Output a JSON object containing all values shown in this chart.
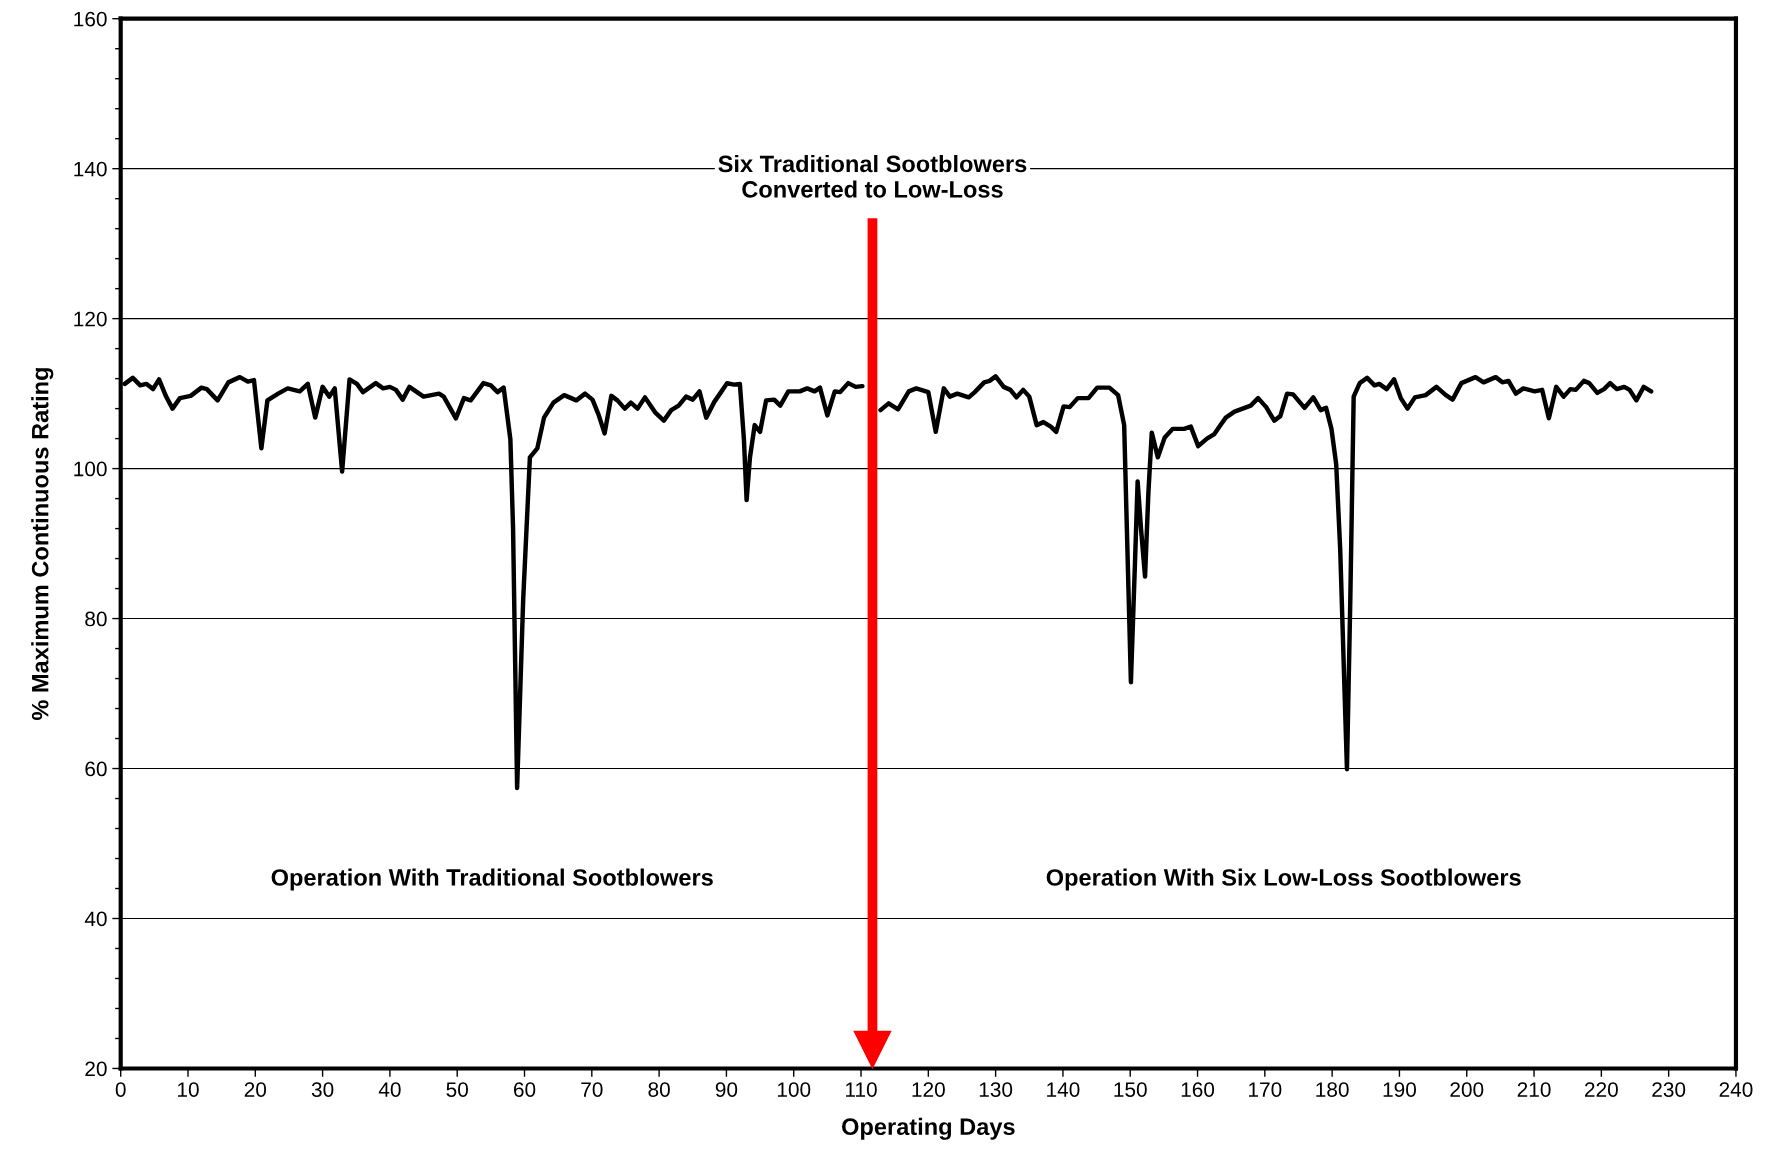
{
  "chart_data": {
    "type": "line",
    "xlabel": "Operating Days",
    "ylabel": "% Maximum Continuous Rating",
    "xlim": [
      0,
      240
    ],
    "xticks": [
      0,
      10,
      20,
      30,
      40,
      50,
      60,
      70,
      80,
      90,
      100,
      110,
      120,
      130,
      140,
      150,
      160,
      170,
      180,
      190,
      200,
      210,
      220,
      230,
      240
    ],
    "ylim": [
      20,
      160
    ],
    "yticks": [
      20,
      40,
      60,
      80,
      100,
      120,
      140,
      160
    ],
    "grid": "y",
    "marker": "none",
    "line_style": "solid",
    "series": [
      {
        "color": "#000000",
        "x": [
          0.6,
          1.8,
          2.9,
          3.8,
          4.8,
          5.7,
          6.7,
          7.7,
          8.8,
          10.4,
          12.0,
          12.8,
          14.4,
          16.0,
          17.7,
          18.9,
          19.8,
          20.9,
          21.8,
          23.4,
          24.8,
          26.6,
          27.8,
          28.9,
          30.0,
          31.0,
          31.8,
          32.9,
          34.0,
          35.1,
          36.0,
          37.9,
          39.0,
          40.0,
          40.9,
          41.9,
          42.9,
          45.0,
          47.3,
          48.0,
          49.8,
          51.0,
          52.0,
          53.9,
          55.0,
          56.0,
          56.9,
          57.9,
          58.3,
          58.9,
          59.8,
          60.8,
          61.9,
          62.9,
          64.3,
          65.9,
          67.7,
          69.0,
          70.1,
          71.0,
          71.9,
          72.9,
          73.8,
          74.9,
          75.8,
          76.8,
          77.9,
          79.4,
          80.7,
          81.8,
          82.9,
          84.0,
          85.0,
          86.0,
          87.0,
          88.2,
          89.2,
          90.1,
          91.1,
          92.0,
          92.6,
          93.0,
          93.5,
          94.2,
          95.0,
          95.9,
          97.1,
          98.0,
          99.2,
          100.9,
          102.0,
          103.1,
          103.9,
          105.0,
          106.1,
          106.9,
          108.1,
          109.2,
          110.2,
          111.5,
          112.9,
          114.1,
          115.5,
          117.1,
          118.2,
          120.0,
          121.1,
          122.3,
          123.2,
          124.3,
          126.0,
          126.9,
          128.3,
          129.1,
          130.0,
          131.2,
          132.2,
          133.1,
          134.1,
          135.0,
          136.1,
          137.1,
          138.2,
          139.0,
          140.1,
          141.0,
          142.2,
          143.8,
          145.1,
          146.9,
          148.2,
          149.1,
          149.5,
          150.1,
          150.7,
          151.1,
          151.6,
          152.2,
          152.7,
          153.2,
          154.1,
          155.1,
          156.3,
          158.0,
          159.0,
          160.1,
          161.4,
          162.5,
          163.5,
          164.2,
          165.5,
          167.9,
          169.0,
          170.2,
          171.4,
          172.3,
          173.3,
          174.2,
          175.9,
          177.2,
          178.3,
          179.1,
          179.9,
          180.6,
          181.2,
          182.2,
          182.7,
          183.2,
          184.1,
          185.2,
          186.3,
          187.0,
          188.1,
          189.2,
          190.2,
          191.2,
          192.3,
          193.9,
          195.5,
          196.9,
          197.9,
          199.2,
          201.3,
          202.5,
          204.3,
          205.3,
          206.2,
          207.3,
          208.4,
          210.1,
          211.2,
          212.2,
          213.3,
          214.4,
          215.4,
          216.2,
          217.4,
          218.2,
          219.4,
          220.4,
          221.3,
          222.3,
          223.4,
          224.2,
          225.2,
          226.3,
          227.4
        ],
        "values": [
          111.3,
          112.1,
          111.1,
          111.3,
          110.6,
          111.9,
          109.7,
          108.0,
          109.4,
          109.7,
          110.8,
          110.6,
          109.1,
          111.5,
          112.2,
          111.6,
          111.8,
          102.7,
          109.1,
          110.0,
          110.7,
          110.3,
          111.3,
          106.8,
          110.9,
          109.6,
          110.7,
          99.6,
          111.9,
          111.3,
          110.2,
          111.4,
          110.7,
          110.9,
          110.5,
          109.2,
          110.9,
          109.6,
          110.0,
          109.6,
          106.7,
          109.4,
          109.1,
          111.4,
          111.1,
          110.2,
          110.8,
          103.9,
          92.0,
          57.4,
          82.5,
          101.5,
          102.7,
          106.8,
          108.8,
          109.8,
          109.1,
          110.0,
          109.2,
          107.2,
          104.7,
          109.7,
          109.1,
          108.0,
          108.8,
          108.0,
          109.5,
          107.5,
          106.4,
          107.8,
          108.4,
          109.6,
          109.2,
          110.3,
          106.8,
          108.9,
          110.2,
          111.4,
          111.2,
          111.3,
          103.9,
          95.8,
          101.5,
          105.8,
          104.9,
          109.1,
          109.2,
          108.4,
          110.3,
          110.3,
          110.7,
          110.3,
          110.8,
          107.1,
          110.3,
          110.2,
          111.4,
          110.9,
          111.0,
          null,
          107.8,
          108.7,
          107.9,
          110.3,
          110.7,
          110.2,
          104.9,
          110.7,
          109.6,
          110.0,
          109.5,
          110.2,
          111.5,
          111.7,
          112.3,
          110.9,
          110.5,
          109.5,
          110.5,
          109.6,
          105.8,
          106.2,
          105.6,
          104.9,
          108.3,
          108.2,
          109.4,
          109.4,
          110.8,
          110.8,
          109.8,
          105.8,
          92.0,
          71.5,
          87.3,
          98.3,
          92.0,
          85.6,
          96.8,
          104.8,
          101.5,
          104.1,
          105.3,
          105.3,
          105.6,
          103.0,
          104.0,
          104.6,
          105.9,
          106.8,
          107.6,
          108.4,
          109.4,
          108.2,
          106.4,
          107.0,
          110.0,
          109.9,
          108.1,
          109.5,
          107.8,
          108.1,
          105.3,
          100.6,
          89.2,
          59.9,
          82.5,
          109.6,
          111.4,
          112.1,
          111.1,
          111.3,
          110.6,
          111.9,
          109.4,
          108.0,
          109.5,
          109.8,
          110.9,
          109.8,
          109.2,
          111.4,
          112.2,
          111.5,
          112.2,
          111.5,
          111.7,
          110.0,
          110.7,
          110.3,
          110.5,
          106.7,
          110.9,
          109.6,
          110.6,
          110.5,
          111.7,
          111.4,
          110.1,
          110.6,
          111.4,
          110.6,
          110.9,
          110.5,
          109.1,
          110.9,
          110.3
        ]
      }
    ],
    "ref_lines": [
      {
        "axis": "x",
        "value": 111.7,
        "label": "Six Traditional Sootblowers\nConverted to Low-Loss",
        "color": "#ff0000"
      }
    ],
    "annotations": [
      "Operation With Traditional Sootblowers",
      "Operation With Six Low-Loss Sootblowers"
    ]
  }
}
